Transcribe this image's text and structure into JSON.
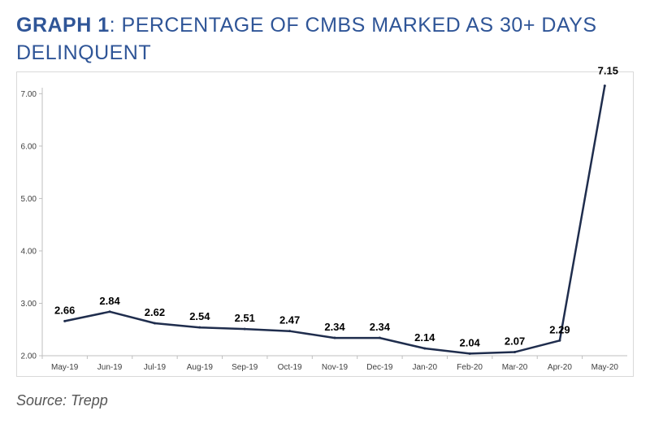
{
  "header": {
    "title_bold": "GRAPH 1",
    "title_rest": ": PERCENTAGE OF CMBS MARKED AS 30+ DAYS DELINQUENT"
  },
  "source": "Source: Trepp",
  "chart_data": {
    "type": "line",
    "categories": [
      "May-19",
      "Jun-19",
      "Jul-19",
      "Aug-19",
      "Sep-19",
      "Oct-19",
      "Nov-19",
      "Dec-19",
      "Jan-20",
      "Feb-20",
      "Mar-20",
      "Apr-20",
      "May-20"
    ],
    "values": [
      2.66,
      2.84,
      2.62,
      2.54,
      2.51,
      2.47,
      2.34,
      2.34,
      2.14,
      2.04,
      2.07,
      2.29,
      7.15
    ],
    "data_labels": [
      "2.66",
      "2.84",
      "2.62",
      "2.54",
      "2.51",
      "2.47",
      "2.34",
      "2.34",
      "2.14",
      "2.04",
      "2.07",
      "2.29",
      "7.15"
    ],
    "yticks": [
      "2.00",
      "3.00",
      "4.00",
      "5.00",
      "6.00",
      "7.00"
    ],
    "ylim": [
      2,
      7.3
    ],
    "grid": false,
    "legend": "none",
    "line_color": "#1f2d4d"
  }
}
